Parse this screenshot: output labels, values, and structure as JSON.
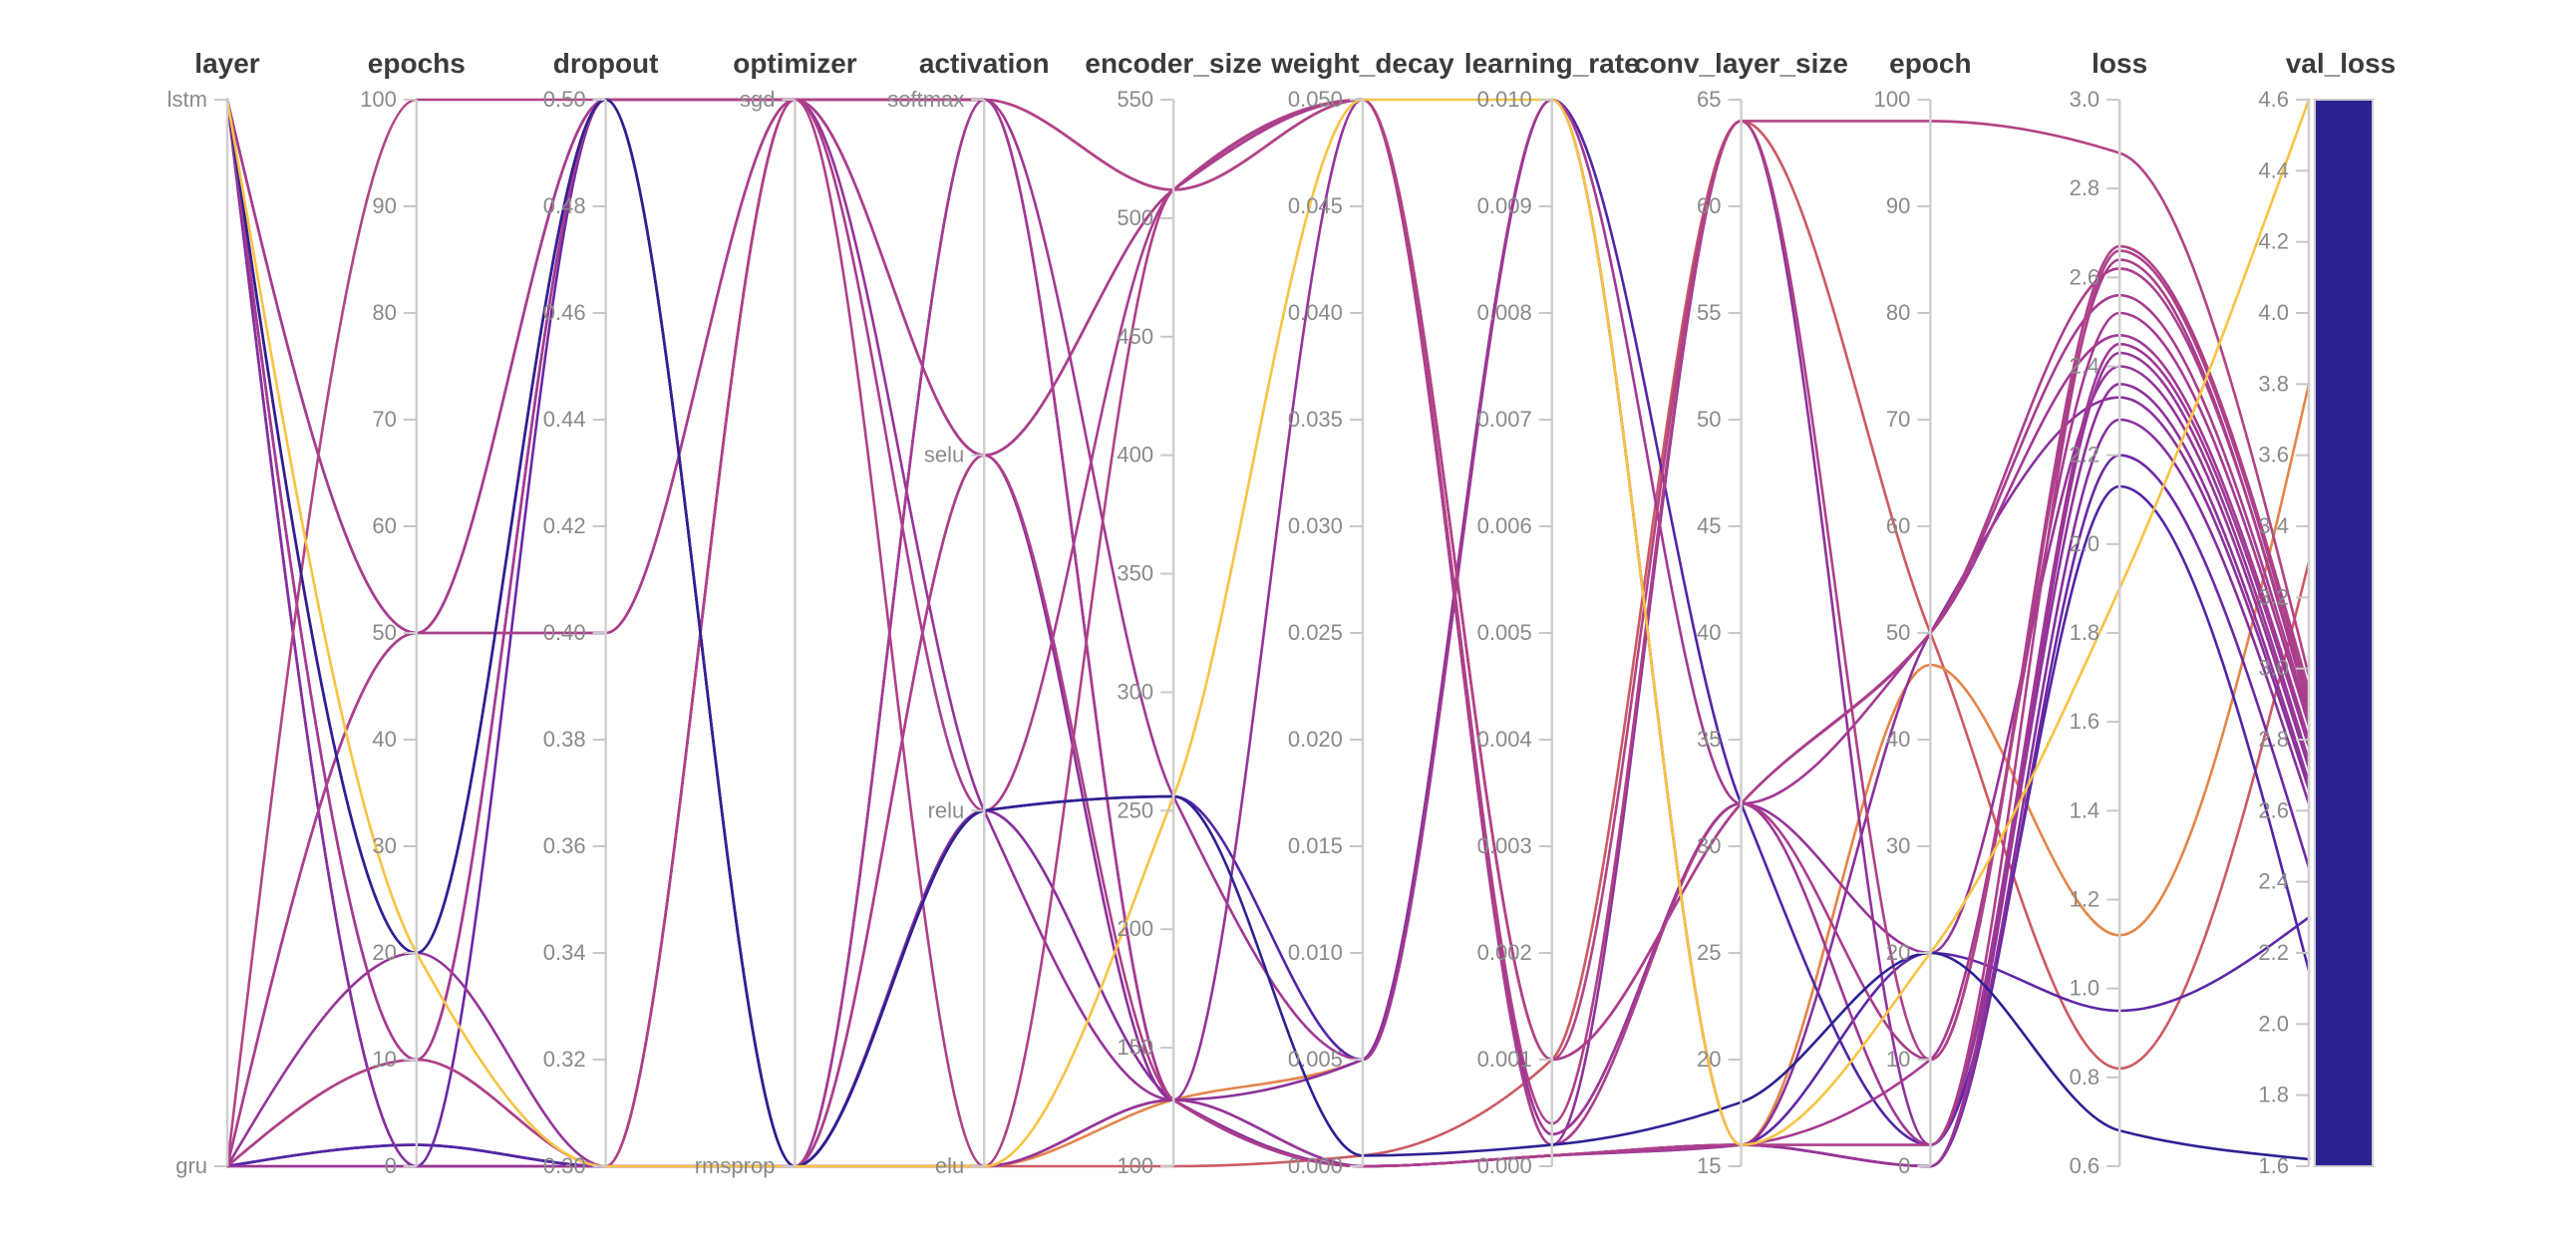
{
  "chart_data": {
    "type": "parallel-coordinates",
    "color_by": "val_loss",
    "axes": [
      {
        "name": "layer",
        "type": "categorical",
        "categories": [
          "lstm",
          "gru"
        ]
      },
      {
        "name": "epochs",
        "type": "linear",
        "min": 0,
        "max": 100,
        "decimals": 0,
        "ticks": [
          100,
          90,
          80,
          70,
          60,
          50,
          40,
          30,
          20,
          10,
          0
        ]
      },
      {
        "name": "dropout",
        "type": "linear",
        "min": 0.3,
        "max": 0.5,
        "decimals": 2,
        "ticks": [
          0.5,
          0.48,
          0.46,
          0.44,
          0.42,
          0.4,
          0.38,
          0.36,
          0.34,
          0.32,
          0.3
        ]
      },
      {
        "name": "optimizer",
        "type": "categorical",
        "categories": [
          "sgd",
          "rmsprop"
        ]
      },
      {
        "name": "activation",
        "type": "categorical",
        "categories": [
          "softmax",
          "selu",
          "relu",
          "elu"
        ]
      },
      {
        "name": "encoder_size",
        "type": "linear",
        "min": 100,
        "max": 550,
        "decimals": 0,
        "ticks": [
          550,
          500,
          450,
          400,
          350,
          300,
          250,
          200,
          150,
          100
        ]
      },
      {
        "name": "weight_decay",
        "type": "linear",
        "min": 0,
        "max": 0.05,
        "decimals": 3,
        "ticks": [
          0.05,
          0.045,
          0.04,
          0.035,
          0.03,
          0.025,
          0.02,
          0.015,
          0.01,
          0.005,
          0.0
        ]
      },
      {
        "name": "learning_rate",
        "type": "linear",
        "min": 0,
        "max": 0.01,
        "decimals": 3,
        "ticks": [
          0.01,
          0.009,
          0.008,
          0.007,
          0.006,
          0.005,
          0.004,
          0.003,
          0.002,
          0.001,
          0.0
        ]
      },
      {
        "name": "conv_layer_size",
        "type": "linear",
        "min": 15,
        "max": 65,
        "decimals": 0,
        "ticks": [
          65,
          60,
          55,
          50,
          45,
          40,
          35,
          30,
          25,
          20,
          15
        ]
      },
      {
        "name": "epoch",
        "type": "linear",
        "min": 0,
        "max": 100,
        "decimals": 0,
        "ticks": [
          100,
          90,
          80,
          70,
          60,
          50,
          40,
          30,
          20,
          10,
          0
        ]
      },
      {
        "name": "loss",
        "type": "linear",
        "min": 0.6,
        "max": 3.0,
        "decimals": 1,
        "ticks": [
          3.0,
          2.8,
          2.6,
          2.4,
          2.2,
          2.0,
          1.8,
          1.6,
          1.4,
          1.2,
          1.0,
          0.8,
          0.6
        ]
      },
      {
        "name": "val_loss",
        "type": "linear",
        "min": 1.6,
        "max": 4.6,
        "decimals": 1,
        "colorbar": true,
        "ticks": [
          4.6,
          4.4,
          4.2,
          4.0,
          3.8,
          3.6,
          3.4,
          3.2,
          3.0,
          2.8,
          2.6,
          2.4,
          2.2,
          2.0,
          1.8,
          1.6
        ]
      }
    ],
    "colormap": [
      [
        0.0,
        "#2c2191"
      ],
      [
        0.1,
        "#41219f"
      ],
      [
        0.2,
        "#5526a7"
      ],
      [
        0.3,
        "#7129a3"
      ],
      [
        0.4,
        "#a23894"
      ],
      [
        0.467,
        "#b44483"
      ],
      [
        0.567,
        "#cc5a63"
      ],
      [
        0.667,
        "#de7652"
      ],
      [
        0.8,
        "#eb9440"
      ],
      [
        1.0,
        "#f6c444"
      ]
    ],
    "runs": [
      {
        "layer": "gru",
        "epochs": 100,
        "dropout": 0.5,
        "optimizer": "sgd",
        "activation": "softmax",
        "encoder_size": 512,
        "weight_decay": 0.05,
        "learning_rate": 0.001,
        "conv_layer_size": 64,
        "epoch": 98,
        "loss": 2.88,
        "val_loss": 2.98
      },
      {
        "layer": "lstm",
        "epochs": 20,
        "dropout": 0.3,
        "optimizer": "rmsprop",
        "activation": "elu",
        "encoder_size": 256,
        "weight_decay": 0.05,
        "learning_rate": 0.01,
        "conv_layer_size": 16,
        "epoch": 20,
        "loss": 1.9,
        "val_loss": 4.6
      },
      {
        "layer": "gru",
        "epochs": 2,
        "dropout": 0.3,
        "optimizer": "rmsprop",
        "activation": "elu",
        "encoder_size": 128,
        "weight_decay": 0.005,
        "learning_rate": 0.01,
        "conv_layer_size": 16,
        "epoch": 47,
        "loss": 1.12,
        "val_loss": 3.8
      },
      {
        "layer": "gru",
        "epochs": 0,
        "dropout": 0.3,
        "optimizer": "rmsprop",
        "activation": "elu",
        "encoder_size": 100,
        "weight_decay": 0.0005,
        "learning_rate": 0.001,
        "conv_layer_size": 64,
        "epoch": 50,
        "loss": 0.82,
        "val_loss": 3.3
      },
      {
        "layer": "lstm",
        "epochs": 20,
        "dropout": 0.5,
        "optimizer": "rmsprop",
        "activation": "relu",
        "encoder_size": 256,
        "weight_decay": 0.0005,
        "learning_rate": 0.0002,
        "conv_layer_size": 18,
        "epoch": 20,
        "loss": 0.68,
        "val_loss": 1.62
      },
      {
        "layer": "lstm",
        "epochs": 20,
        "dropout": 0.5,
        "optimizer": "sgd",
        "activation": "softmax",
        "encoder_size": 512,
        "weight_decay": 0.05,
        "learning_rate": 0.0003,
        "conv_layer_size": 32,
        "epoch": 2,
        "loss": 2.45,
        "val_loss": 2.78
      },
      {
        "layer": "gru",
        "epochs": 50,
        "dropout": 0.4,
        "optimizer": "sgd",
        "activation": "selu",
        "encoder_size": 512,
        "weight_decay": 0.05,
        "learning_rate": 0.001,
        "conv_layer_size": 32,
        "epoch": 50,
        "loss": 2.62,
        "val_loss": 2.9
      },
      {
        "layer": "lstm",
        "epochs": 10,
        "dropout": 0.5,
        "optimizer": "rmsprop",
        "activation": "softmax",
        "encoder_size": 128,
        "weight_decay": 0.0,
        "learning_rate": 0.0001,
        "conv_layer_size": 16,
        "epoch": 10,
        "loss": 2.52,
        "val_loss": 2.84
      },
      {
        "layer": "gru",
        "epochs": 20,
        "dropout": 0.3,
        "optimizer": "sgd",
        "activation": "relu",
        "encoder_size": 128,
        "weight_decay": 0.05,
        "learning_rate": 0.0003,
        "conv_layer_size": 32,
        "epoch": 20,
        "loss": 2.4,
        "val_loss": 2.72
      },
      {
        "layer": "lstm",
        "epochs": 50,
        "dropout": 0.5,
        "optimizer": "rmsprop",
        "activation": "selu",
        "encoder_size": 128,
        "weight_decay": 0.005,
        "learning_rate": 0.01,
        "conv_layer_size": 16,
        "epoch": 50,
        "loss": 2.33,
        "val_loss": 2.66
      },
      {
        "layer": "gru",
        "epochs": 10,
        "dropout": 0.3,
        "optimizer": "sgd",
        "activation": "elu",
        "encoder_size": 512,
        "weight_decay": 0.05,
        "learning_rate": 0.0004,
        "conv_layer_size": 64,
        "epoch": 10,
        "loss": 2.67,
        "val_loss": 2.94
      },
      {
        "layer": "lstm",
        "epochs": 0,
        "dropout": 0.3,
        "optimizer": "rmsprop",
        "activation": "relu",
        "encoder_size": 128,
        "weight_decay": 0.0,
        "learning_rate": 0.0001,
        "conv_layer_size": 16,
        "epoch": 0,
        "loss": 2.28,
        "val_loss": 2.62
      },
      {
        "layer": "gru",
        "epochs": 50,
        "dropout": 0.4,
        "optimizer": "sgd",
        "activation": "softmax",
        "encoder_size": 256,
        "weight_decay": 0.005,
        "learning_rate": 0.01,
        "conv_layer_size": 32,
        "epoch": 50,
        "loss": 2.47,
        "val_loss": 2.8
      },
      {
        "layer": "lstm",
        "epochs": 20,
        "dropout": 0.5,
        "optimizer": "rmsprop",
        "activation": "selu",
        "encoder_size": 128,
        "weight_decay": 0.0,
        "learning_rate": 0.0001,
        "conv_layer_size": 16,
        "epoch": 2,
        "loss": 2.66,
        "val_loss": 2.92
      },
      {
        "layer": "gru",
        "epochs": 10,
        "dropout": 0.3,
        "optimizer": "sgd",
        "activation": "relu",
        "encoder_size": 512,
        "weight_decay": 0.05,
        "learning_rate": 0.0002,
        "conv_layer_size": 32,
        "epoch": 10,
        "loss": 2.64,
        "val_loss": 2.88
      },
      {
        "layer": "lstm",
        "epochs": 0,
        "dropout": 0.5,
        "optimizer": "rmsprop",
        "activation": "softmax",
        "encoder_size": 128,
        "weight_decay": 0.0,
        "learning_rate": 0.0001,
        "conv_layer_size": 16,
        "epoch": 0,
        "loss": 2.2,
        "val_loss": 2.44
      },
      {
        "layer": "gru",
        "epochs": 2,
        "dropout": 0.3,
        "optimizer": "rmsprop",
        "activation": "relu",
        "encoder_size": 256,
        "weight_decay": 0.005,
        "learning_rate": 0.01,
        "conv_layer_size": 32,
        "epoch": 2,
        "loss": 2.13,
        "val_loss": 2.15
      },
      {
        "layer": "lstm",
        "epochs": 50,
        "dropout": 0.5,
        "optimizer": "sgd",
        "activation": "selu",
        "encoder_size": 512,
        "weight_decay": 0.05,
        "learning_rate": 0.001,
        "conv_layer_size": 32,
        "epoch": 50,
        "loss": 2.56,
        "val_loss": 2.86
      },
      {
        "layer": "gru",
        "epochs": 0,
        "dropout": 0.3,
        "optimizer": "rmsprop",
        "activation": "elu",
        "encoder_size": 128,
        "weight_decay": 0.0,
        "learning_rate": 0.0001,
        "conv_layer_size": 16,
        "epoch": 0,
        "loss": 2.43,
        "val_loss": 2.74
      },
      {
        "layer": "lstm",
        "epochs": 10,
        "dropout": 0.5,
        "optimizer": "sgd",
        "activation": "softmax",
        "encoder_size": 512,
        "weight_decay": 0.05,
        "learning_rate": 0.0002,
        "conv_layer_size": 64,
        "epoch": 2,
        "loss": 2.36,
        "val_loss": 2.68
      },
      {
        "layer": "gru",
        "epochs": 2,
        "dropout": 0.3,
        "optimizer": "rmsprop",
        "activation": "elu",
        "encoder_size": 128,
        "weight_decay": 0.0,
        "learning_rate": 0.0001,
        "conv_layer_size": 16,
        "epoch": 20,
        "loss": 0.95,
        "val_loss": 2.3
      }
    ]
  }
}
